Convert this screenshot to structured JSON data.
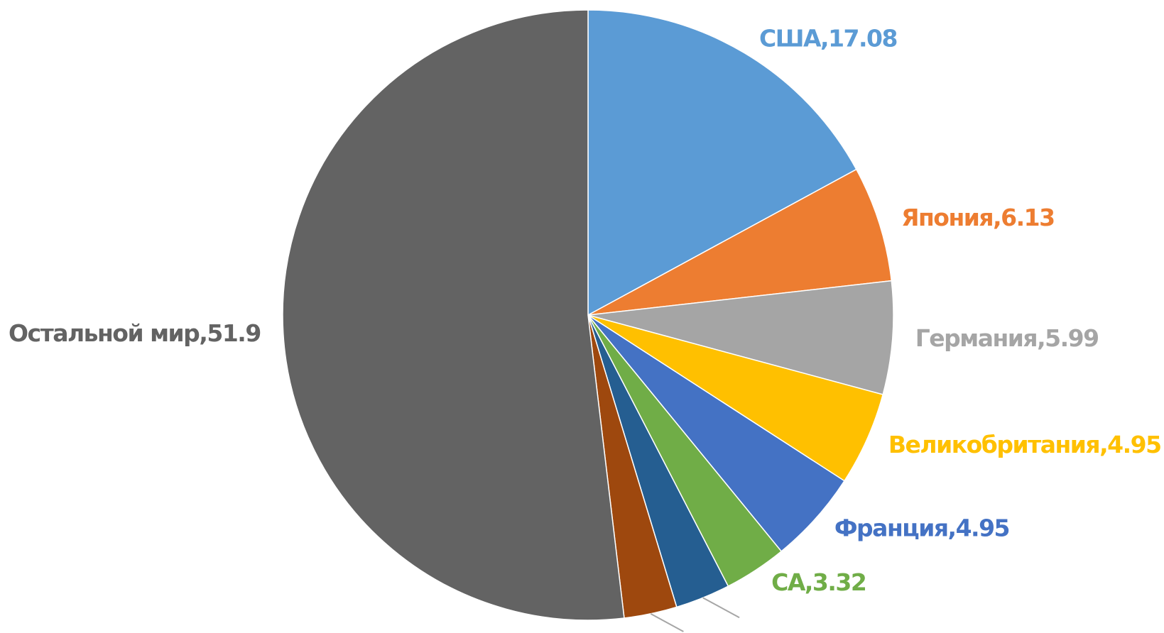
{
  "chart_data": {
    "type": "pie",
    "categories": [
      "США",
      "Япония",
      "Германия",
      "Великобритания",
      "Франция",
      "СА",
      null,
      null,
      "Остальной мир"
    ],
    "values": [
      17.08,
      6.13,
      5.99,
      4.95,
      4.95,
      3.32,
      2.9,
      2.8,
      51.9
    ],
    "colors": [
      "#5b9bd5",
      "#ed7d31",
      "#a5a5a5",
      "#ffc000",
      "#4472c4",
      "#70ad47",
      "#255e91",
      "#9e480e",
      "#636363"
    ],
    "label_separator": ","
  }
}
